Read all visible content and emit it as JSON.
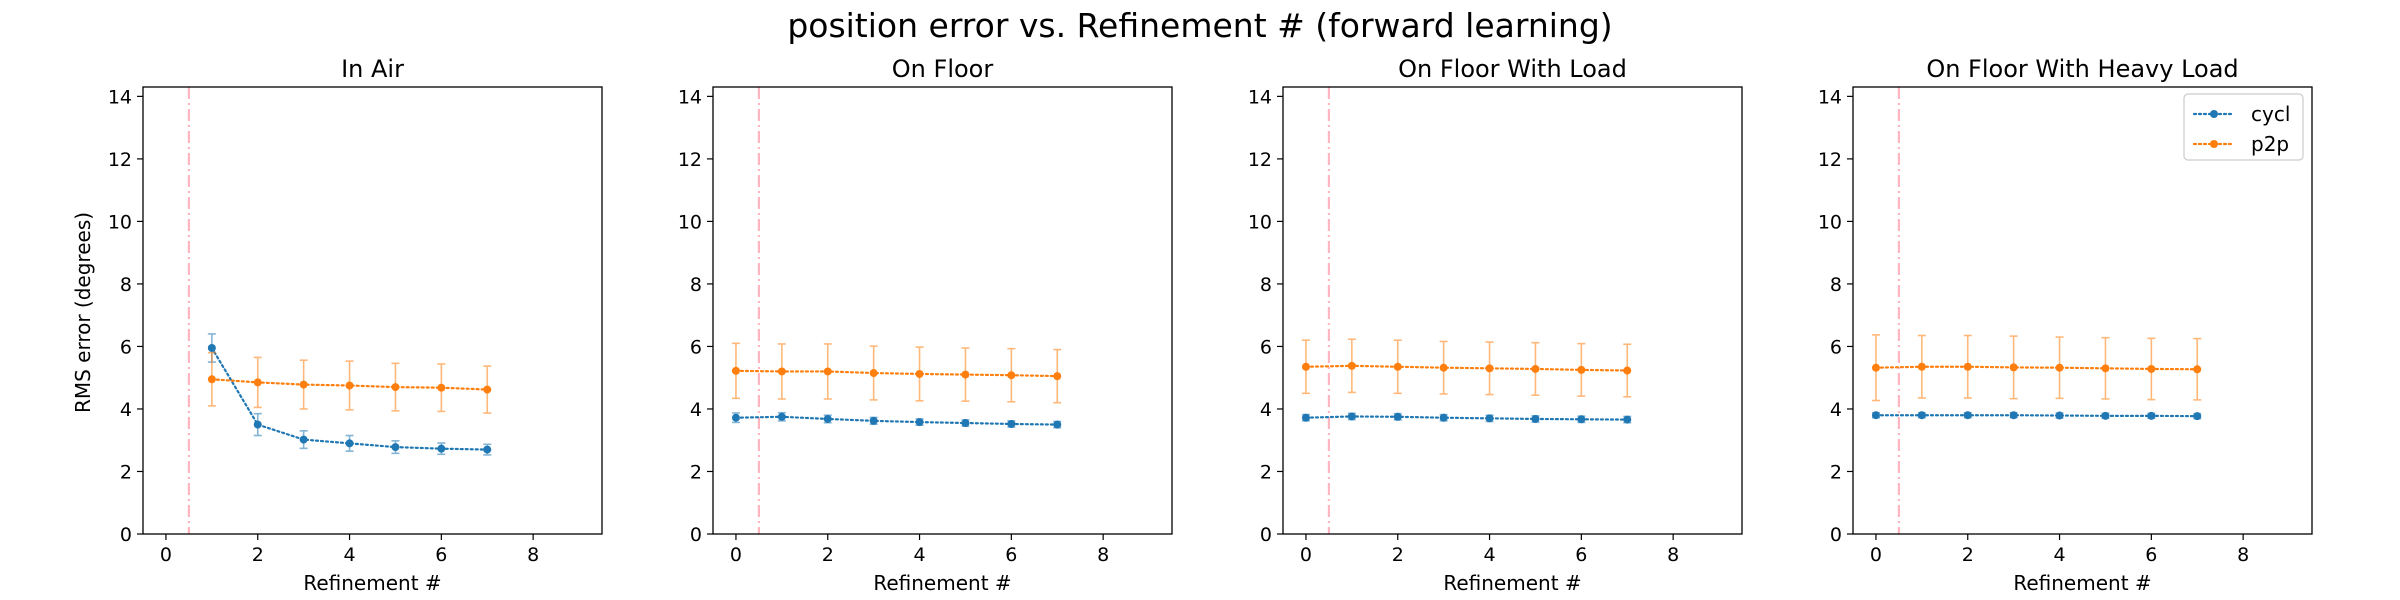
{
  "figure_title": "position error vs. Refinement # (forward learning)",
  "chart_data": [
    {
      "type": "line",
      "title": "In Air",
      "xlabel": "Refinement #",
      "ylabel": "RMS error (degrees)",
      "xlim": [
        -0.5,
        9.5
      ],
      "ylim": [
        0,
        14.3
      ],
      "xticks": [
        0,
        2,
        4,
        6,
        8
      ],
      "yticks": [
        0,
        2,
        4,
        6,
        8,
        10,
        12,
        14
      ],
      "vline_x": 0.5,
      "series": [
        {
          "name": "cycl",
          "color": "#1f77b4",
          "x": [
            1,
            2,
            3,
            4,
            5,
            6,
            7
          ],
          "y": [
            5.95,
            3.5,
            3.02,
            2.9,
            2.78,
            2.73,
            2.7
          ],
          "err": [
            0.45,
            0.35,
            0.28,
            0.25,
            0.2,
            0.18,
            0.17
          ]
        },
        {
          "name": "p2p",
          "color": "#ff7f0e",
          "x": [
            1,
            2,
            3,
            4,
            5,
            6,
            7
          ],
          "y": [
            4.95,
            4.85,
            4.78,
            4.75,
            4.7,
            4.68,
            4.62
          ],
          "err": [
            0.85,
            0.8,
            0.78,
            0.78,
            0.76,
            0.76,
            0.75
          ]
        }
      ]
    },
    {
      "type": "line",
      "title": "On Floor",
      "xlabel": "Refinement #",
      "ylabel": "",
      "xlim": [
        -0.5,
        9.5
      ],
      "ylim": [
        0,
        14.3
      ],
      "xticks": [
        0,
        2,
        4,
        6,
        8
      ],
      "yticks": [
        0,
        2,
        4,
        6,
        8,
        10,
        12,
        14
      ],
      "vline_x": 0.5,
      "series": [
        {
          "name": "cycl",
          "color": "#1f77b4",
          "x": [
            0,
            1,
            2,
            3,
            4,
            5,
            6,
            7
          ],
          "y": [
            3.72,
            3.75,
            3.68,
            3.62,
            3.58,
            3.55,
            3.52,
            3.5
          ],
          "err": [
            0.15,
            0.13,
            0.12,
            0.11,
            0.1,
            0.1,
            0.1,
            0.1
          ]
        },
        {
          "name": "p2p",
          "color": "#ff7f0e",
          "x": [
            0,
            1,
            2,
            3,
            4,
            5,
            6,
            7
          ],
          "y": [
            5.22,
            5.2,
            5.2,
            5.15,
            5.12,
            5.1,
            5.08,
            5.05
          ],
          "err": [
            0.88,
            0.88,
            0.88,
            0.86,
            0.86,
            0.85,
            0.85,
            0.85
          ]
        }
      ]
    },
    {
      "type": "line",
      "title": "On Floor With Load",
      "xlabel": "Refinement #",
      "ylabel": "",
      "xlim": [
        -0.5,
        9.5
      ],
      "ylim": [
        0,
        14.3
      ],
      "xticks": [
        0,
        2,
        4,
        6,
        8
      ],
      "yticks": [
        0,
        2,
        4,
        6,
        8,
        10,
        12,
        14
      ],
      "vline_x": 0.5,
      "series": [
        {
          "name": "cycl",
          "color": "#1f77b4",
          "x": [
            0,
            1,
            2,
            3,
            4,
            5,
            6,
            7
          ],
          "y": [
            3.72,
            3.76,
            3.75,
            3.72,
            3.7,
            3.68,
            3.67,
            3.66
          ],
          "err": [
            0.1,
            0.1,
            0.1,
            0.1,
            0.1,
            0.1,
            0.1,
            0.1
          ]
        },
        {
          "name": "p2p",
          "color": "#ff7f0e",
          "x": [
            0,
            1,
            2,
            3,
            4,
            5,
            6,
            7
          ],
          "y": [
            5.35,
            5.38,
            5.35,
            5.32,
            5.3,
            5.28,
            5.25,
            5.23
          ],
          "err": [
            0.85,
            0.85,
            0.85,
            0.84,
            0.84,
            0.84,
            0.84,
            0.84
          ]
        }
      ]
    },
    {
      "type": "line",
      "title": "On Floor With Heavy Load",
      "xlabel": "Refinement #",
      "ylabel": "",
      "xlim": [
        -0.5,
        9.5
      ],
      "ylim": [
        0,
        14.3
      ],
      "xticks": [
        0,
        2,
        4,
        6,
        8
      ],
      "yticks": [
        0,
        2,
        4,
        6,
        8,
        10,
        12,
        14
      ],
      "vline_x": 0.5,
      "legend": "top-right",
      "series": [
        {
          "name": "cycl",
          "color": "#1f77b4",
          "x": [
            0,
            1,
            2,
            3,
            4,
            5,
            6,
            7
          ],
          "y": [
            3.8,
            3.8,
            3.8,
            3.8,
            3.79,
            3.78,
            3.78,
            3.77
          ],
          "err": [
            0.08,
            0.08,
            0.08,
            0.08,
            0.08,
            0.08,
            0.08,
            0.08
          ]
        },
        {
          "name": "p2p",
          "color": "#ff7f0e",
          "x": [
            0,
            1,
            2,
            3,
            4,
            5,
            6,
            7
          ],
          "y": [
            5.32,
            5.35,
            5.35,
            5.33,
            5.32,
            5.3,
            5.28,
            5.27
          ],
          "err": [
            1.05,
            1.0,
            1.0,
            1.0,
            0.98,
            0.98,
            0.98,
            0.98
          ]
        }
      ]
    }
  ]
}
